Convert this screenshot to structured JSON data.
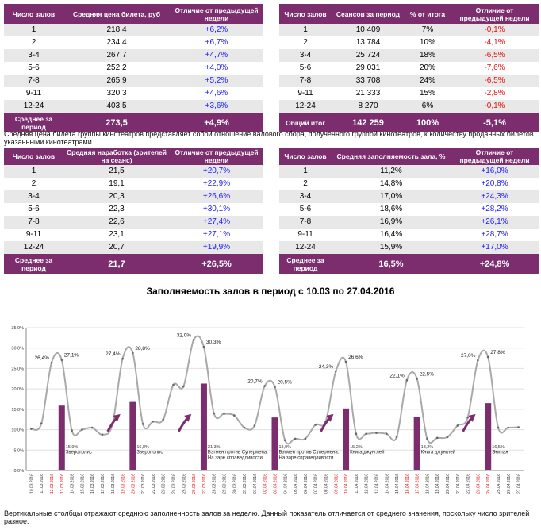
{
  "t1": {
    "headers": [
      "Число залов",
      "Средняя цена билета, руб",
      "Отличие от предыдущей недели"
    ],
    "rows": [
      [
        "1",
        "218,4",
        "+6,2%"
      ],
      [
        "2",
        "234,4",
        "+6,7%"
      ],
      [
        "3-4",
        "267,7",
        "+4,7%"
      ],
      [
        "5-6",
        "252,2",
        "+4,0%"
      ],
      [
        "7-8",
        "265,9",
        "+5,2%"
      ],
      [
        "9-11",
        "320,3",
        "+4,6%"
      ],
      [
        "12-24",
        "403,5",
        "+3,6%"
      ]
    ],
    "total": [
      "Среднее за период",
      "273,5",
      "+4,9%"
    ]
  },
  "t2": {
    "headers": [
      "Число залов",
      "Сеансов за период",
      "% от итога",
      "Отличие от предыдущей недели"
    ],
    "rows": [
      [
        "1",
        "10 409",
        "7%",
        "-0,1%"
      ],
      [
        "2",
        "13 784",
        "10%",
        "-4,1%"
      ],
      [
        "3-4",
        "25 724",
        "18%",
        "-6,5%"
      ],
      [
        "5-6",
        "29 031",
        "20%",
        "-7,6%"
      ],
      [
        "7-8",
        "33 708",
        "24%",
        "-6,5%"
      ],
      [
        "9-11",
        "21 333",
        "15%",
        "-2,8%"
      ],
      [
        "12-24",
        "8 270",
        "6%",
        "-0,1%"
      ]
    ],
    "total": [
      "Общий итог",
      "142 259",
      "100%",
      "-5,1%"
    ]
  },
  "note1": "Средняя цена билета группы кинотеатров представляет собой отношение валового сбора, полученного группой кинотеатров, к количеству проданных билетов указанными кинотеатрами.",
  "t3": {
    "headers": [
      "Число залов",
      "Средняя наработка (зрителей на сеанс)",
      "Отличие от предыдущей недели"
    ],
    "rows": [
      [
        "1",
        "21,5",
        "+20,7%"
      ],
      [
        "2",
        "19,1",
        "+22,9%"
      ],
      [
        "3-4",
        "20,3",
        "+26,6%"
      ],
      [
        "5-6",
        "22,3",
        "+30,1%"
      ],
      [
        "7-8",
        "22,6",
        "+27,4%"
      ],
      [
        "9-11",
        "23,1",
        "+27,1%"
      ],
      [
        "12-24",
        "20,7",
        "+19,9%"
      ]
    ],
    "total": [
      "Среднее за период",
      "21,7",
      "+26,5%"
    ]
  },
  "t4": {
    "headers": [
      "Число залов",
      "Средняя заполняемость зала, %",
      "Отличие от предыдущей недели"
    ],
    "rows": [
      [
        "1",
        "11,2%",
        "+16,0%"
      ],
      [
        "2",
        "14,8%",
        "+20,8%"
      ],
      [
        "3-4",
        "17,0%",
        "+24,3%"
      ],
      [
        "5-6",
        "18,6%",
        "+28,2%"
      ],
      [
        "7-8",
        "16,9%",
        "+26,1%"
      ],
      [
        "9-11",
        "16,4%",
        "+28,7%"
      ],
      [
        "12-24",
        "15,9%",
        "+17,0%"
      ]
    ],
    "total": [
      "Среднее за период",
      "16,5%",
      "+24,8%"
    ]
  },
  "chart_data": {
    "type": "line",
    "title": "Заполняемость залов в период с 10.03 по 27.04.2016",
    "x": [
      "10.03.2016",
      "11.03.2016",
      "12.03.2016",
      "13.03.2016",
      "14.03.2016",
      "15.03.2016",
      "16.03.2016",
      "17.03.2016",
      "18.03.2016",
      "19.03.2016",
      "20.03.2016",
      "21.03.2016",
      "22.03.2016",
      "23.03.2016",
      "24.03.2016",
      "25.03.2016",
      "26.03.2016",
      "27.03.2016",
      "28.03.2016",
      "29.03.2016",
      "30.03.2016",
      "31.03.2016",
      "01.04.2016",
      "02.04.2016",
      "03.04.2016",
      "04.04.2016",
      "05.04.2016",
      "06.04.2016",
      "07.04.2016",
      "08.04.2016",
      "09.04.2016",
      "10.04.2016",
      "11.04.2016",
      "12.04.2016",
      "13.04.2016",
      "14.04.2016",
      "15.04.2016",
      "16.04.2016",
      "17.04.2016",
      "18.04.2016",
      "19.04.2016",
      "20.04.2016",
      "21.04.2016",
      "22.04.2016",
      "23.04.2016",
      "24.04.2016",
      "25.04.2016",
      "26.04.2016",
      "27.04.2016"
    ],
    "red_dates": [
      "12.03.2016",
      "13.03.2016",
      "19.03.2016",
      "20.03.2016",
      "26.03.2016",
      "27.03.2016",
      "02.04.2016",
      "03.04.2016",
      "09.04.2016",
      "10.04.2016",
      "16.04.2016",
      "17.04.2016",
      "23.04.2016",
      "24.04.2016"
    ],
    "values": [
      10.2,
      11.5,
      26.4,
      27.1,
      9.8,
      10.0,
      10.5,
      8.8,
      11.3,
      27.4,
      28.8,
      11.4,
      12.0,
      12.5,
      21.0,
      20.6,
      32.0,
      30.3,
      14.0,
      13.9,
      13.5,
      10.5,
      11.0,
      20.7,
      20.5,
      7.4,
      7.8,
      7.8,
      11.2,
      12.0,
      24.3,
      26.6,
      9.0,
      9.0,
      9.2,
      9.0,
      8.2,
      22.1,
      22.5,
      7.8,
      8.0,
      8.2,
      11.0,
      13.0,
      27.0,
      27.8,
      10.5,
      10.5,
      10.6
    ],
    "labeled_points": [
      {
        "i": 2,
        "label": "26,4%"
      },
      {
        "i": 3,
        "label": "27,1%"
      },
      {
        "i": 9,
        "label": "27,4%"
      },
      {
        "i": 10,
        "label": "28,8%"
      },
      {
        "i": 16,
        "label": "32,0%"
      },
      {
        "i": 17,
        "label": "30,3%"
      },
      {
        "i": 23,
        "label": "20,7%"
      },
      {
        "i": 24,
        "label": "20,5%"
      },
      {
        "i": 30,
        "label": "24,3%"
      },
      {
        "i": 31,
        "label": "26,6%"
      },
      {
        "i": 37,
        "label": "22,1%"
      },
      {
        "i": 38,
        "label": "22,5%"
      },
      {
        "i": 44,
        "label": "27,0%"
      },
      {
        "i": 45,
        "label": "27,8%"
      }
    ],
    "bars": [
      {
        "i": 3,
        "value": 15.9,
        "label": "15,9%",
        "film": "Зверополис"
      },
      {
        "i": 10,
        "value": 16.8,
        "label": "16,8%",
        "film": "Зверополис"
      },
      {
        "i": 17,
        "value": 21.3,
        "label": "21,3%",
        "film": "Бэтмен против Супермена: На заре справедливости"
      },
      {
        "i": 24,
        "value": 13.0,
        "label": "13,0%",
        "film": "Бэтмен против Супермена: На заре справедливости"
      },
      {
        "i": 31,
        "value": 15.2,
        "label": "15,2%",
        "film": "Книга джунглей"
      },
      {
        "i": 38,
        "value": 13.2,
        "label": "13,2%",
        "film": "Книга джунглей"
      },
      {
        "i": 45,
        "value": 16.5,
        "label": "16,5%",
        "film": "Экипаж"
      }
    ],
    "arrows_at": [
      8,
      15,
      29,
      43
    ],
    "yticks": [
      "0,0%",
      "5,0%",
      "10,0%",
      "15,0%",
      "20,0%",
      "25,0%",
      "30,0%",
      "35,0%"
    ],
    "ylim": [
      0,
      35
    ],
    "colors": {
      "series": "#a9a9a9",
      "bar": "#7b2d6e",
      "arrow": "#7b2d6e",
      "red": "#e01010"
    }
  },
  "note2": "Вертикальные столбцы отражают среднюю заполненность залов за неделю. Данный показатель отличается от среднего значения, поскольку число зрителей разное."
}
